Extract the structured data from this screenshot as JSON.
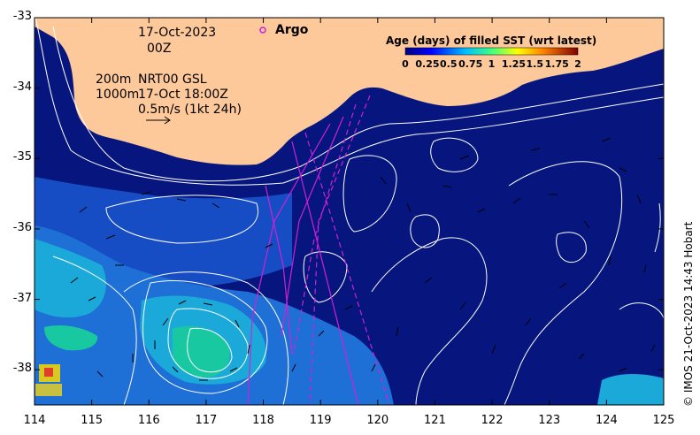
{
  "map": {
    "x_axis": {
      "min": 114,
      "max": 125,
      "ticks": [
        "114",
        "115",
        "116",
        "117",
        "118",
        "119",
        "120",
        "121",
        "122",
        "123",
        "124",
        "125"
      ]
    },
    "y_axis": {
      "min": -38.5,
      "max": -33,
      "ticks": [
        "-33",
        "-34",
        "-35",
        "-36",
        "-37",
        "-38"
      ]
    },
    "colors": {
      "land": "#fdc99a",
      "ocean_deep": "#06167e",
      "mid": "#1750c8",
      "cyan": "#1aa9d8",
      "green": "#18c8a0",
      "contour": "#ffffff",
      "track": "#d21fd8"
    }
  },
  "annotations": {
    "date": "17-Oct-2023",
    "time": "00Z",
    "depth_200": "200m",
    "depth_1000": "1000m",
    "product": "NRT00 GSL",
    "product_time": "17-Oct 18:00Z",
    "scale": "0.5m/s (1kt 24h)",
    "argo_label": "Argo"
  },
  "colorbar": {
    "title": "Age (days) of filled SST (wrt latest)",
    "ticks": [
      "0",
      "0.25",
      "0.5",
      "0.75",
      "1",
      "1.25",
      "1.5",
      "1.75",
      "2"
    ]
  },
  "credit": "© IMOS 21-Oct-2023 14:43 Hobart"
}
